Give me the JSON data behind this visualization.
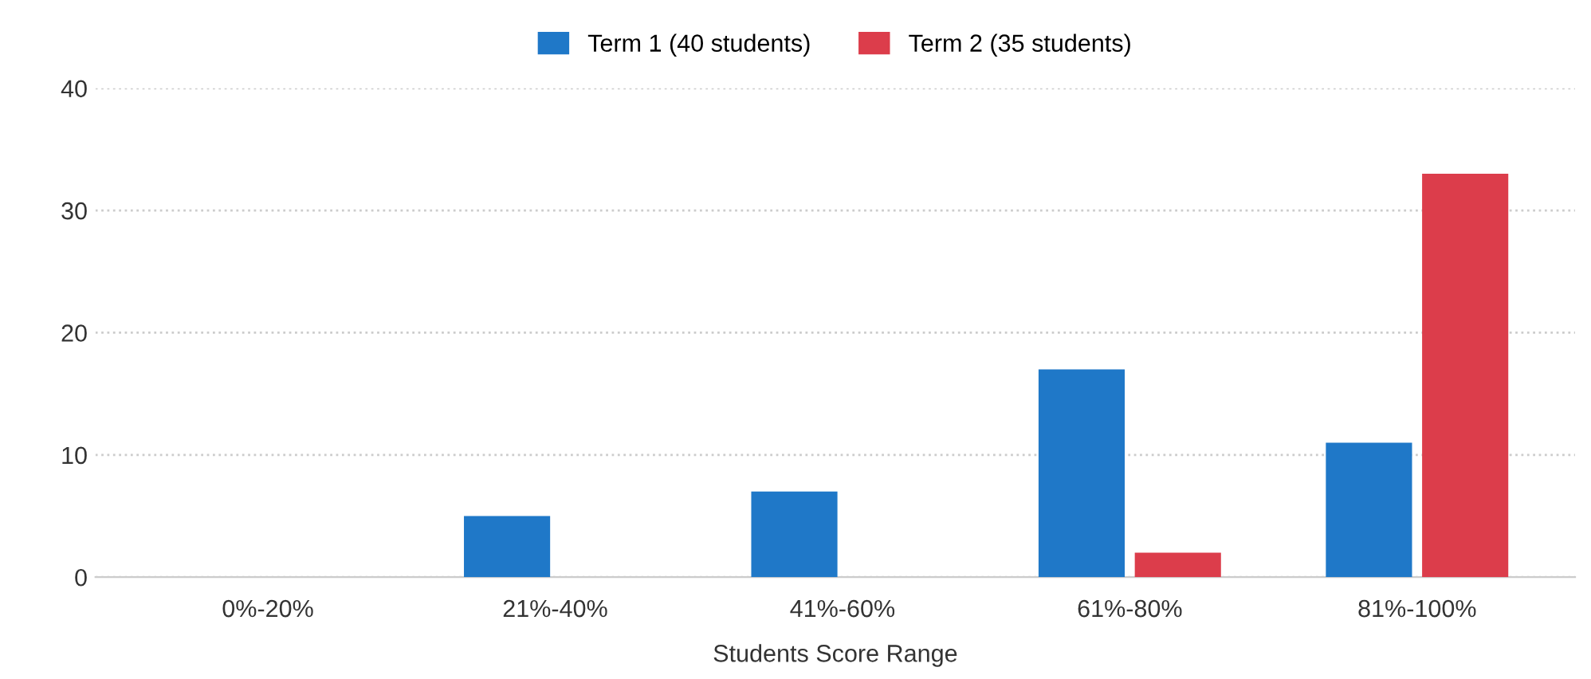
{
  "chart_data": {
    "type": "bar",
    "xlabel": "Students Score Range",
    "categories": [
      "0%-20%",
      "21%-40%",
      "41%-60%",
      "61%-80%",
      "81%-100%"
    ],
    "series": [
      {
        "name": "Term 1 (40 students)",
        "color": "#1f78c8",
        "values": [
          0,
          5,
          7,
          17,
          11
        ]
      },
      {
        "name": "Term 2 (35 students)",
        "color": "#dc3d4b",
        "values": [
          0,
          0,
          0,
          2,
          33
        ]
      }
    ],
    "ylim": [
      0,
      40
    ],
    "yticks": [
      0,
      10,
      20,
      30,
      40
    ],
    "grid": "y",
    "legend": "top"
  }
}
